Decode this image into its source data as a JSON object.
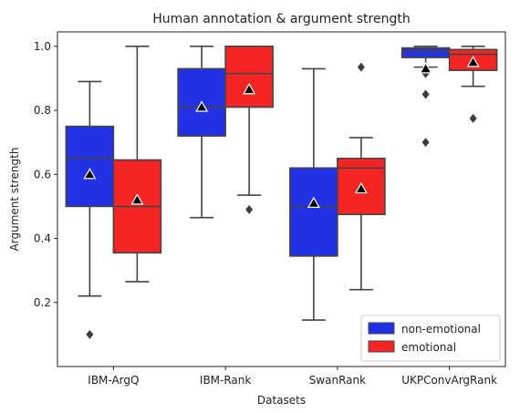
{
  "chart_data": {
    "type": "box",
    "title": "Human annotation & argument strength",
    "xlabel": "Datasets",
    "ylabel": "Argument strength",
    "ylim": [
      0.0,
      1.045
    ],
    "yticks": [
      0.2,
      0.4,
      0.6,
      0.8,
      1.0
    ],
    "ytick_labels": [
      "0.2",
      "0.4",
      "0.6",
      "0.8",
      "1.0"
    ],
    "categories": [
      "IBM-ArgQ",
      "IBM-Rank",
      "SwanRank",
      "UKPConvArgRank"
    ],
    "legend_position": "lower-right",
    "series": [
      {
        "name": "non-emotional",
        "color": "#2231e6",
        "boxes": [
          {
            "whisker_low": 0.22,
            "q1": 0.5,
            "median": 0.65,
            "q3": 0.75,
            "whisker_high": 0.89,
            "mean": 0.6,
            "outliers": [
              0.1
            ]
          },
          {
            "whisker_low": 0.465,
            "q1": 0.72,
            "median": 0.81,
            "q3": 0.93,
            "whisker_high": 1.0,
            "mean": 0.81,
            "outliers": []
          },
          {
            "whisker_low": 0.145,
            "q1": 0.345,
            "median": 0.5,
            "q3": 0.62,
            "whisker_high": 0.93,
            "mean": 0.51,
            "outliers": []
          },
          {
            "whisker_low": 0.935,
            "q1": 0.965,
            "median": 0.985,
            "q3": 0.995,
            "whisker_high": 1.0,
            "mean": 0.93,
            "outliers": [
              0.915,
              0.85,
              0.7
            ]
          }
        ]
      },
      {
        "name": "emotional",
        "color": "#f52525",
        "boxes": [
          {
            "whisker_low": 0.265,
            "q1": 0.355,
            "median": 0.5,
            "q3": 0.645,
            "whisker_high": 1.0,
            "mean": 0.52,
            "outliers": []
          },
          {
            "whisker_low": 0.535,
            "q1": 0.81,
            "median": 0.915,
            "q3": 1.0,
            "whisker_high": 1.0,
            "mean": 0.865,
            "outliers": [
              0.49
            ]
          },
          {
            "whisker_low": 0.24,
            "q1": 0.475,
            "median": 0.62,
            "q3": 0.65,
            "whisker_high": 0.715,
            "mean": 0.555,
            "outliers": [
              0.935
            ]
          },
          {
            "whisker_low": 0.875,
            "q1": 0.925,
            "median": 0.975,
            "q3": 0.99,
            "whisker_high": 1.0,
            "mean": 0.95,
            "outliers": [
              0.775
            ]
          }
        ]
      }
    ]
  }
}
